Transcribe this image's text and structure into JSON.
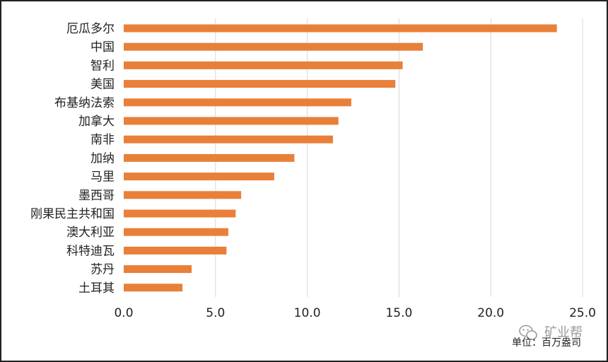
{
  "chart_data": {
    "type": "bar",
    "orientation": "horizontal",
    "title": "",
    "xlabel": "",
    "ylabel": "",
    "categories": [
      "厄瓜多尔",
      "中国",
      "智利",
      "美国",
      "布基纳法索",
      "加拿大",
      "南非",
      "加纳",
      "马里",
      "墨西哥",
      "刚果民主共和国",
      "澳大利亚",
      "科特迪瓦",
      "苏丹",
      "土耳其"
    ],
    "values": [
      23.6,
      16.3,
      15.2,
      14.8,
      12.4,
      11.7,
      11.4,
      9.3,
      8.2,
      6.4,
      6.1,
      5.7,
      5.6,
      3.7,
      3.2
    ],
    "xlim": [
      0,
      25
    ],
    "xticks": [
      "0.0",
      "5.0",
      "10.0",
      "15.0",
      "20.0",
      "25.0"
    ],
    "grid": true,
    "bar_color": "#E8803A",
    "unit_text": "单位：百万盎司"
  },
  "watermark": {
    "text": "矿业帮",
    "icon": "wechat-icon"
  }
}
